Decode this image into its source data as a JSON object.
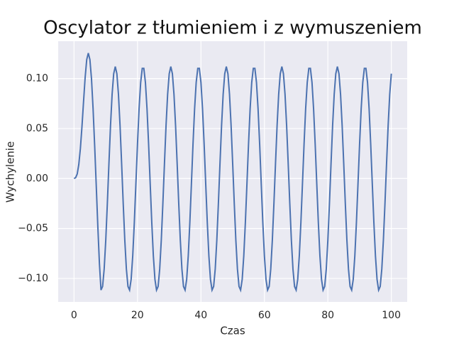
{
  "chart_data": {
    "type": "line",
    "title": "Oscylator z tłumieniem i z wymuszeniem",
    "xlabel": "Czas",
    "ylabel": "Wychylenie",
    "xlim": [
      -5,
      105
    ],
    "ylim": [
      -0.1235,
      0.1374
    ],
    "xticks": [
      0,
      20,
      40,
      60,
      80,
      100
    ],
    "yticks": [
      {
        "value": -0.1,
        "label": "−0.10"
      },
      {
        "value": -0.05,
        "label": "−0.05"
      },
      {
        "value": 0,
        "label": "0.00"
      },
      {
        "value": 0.05,
        "label": "0.05"
      },
      {
        "value": 0.1,
        "label": "0.10"
      }
    ],
    "grid": true,
    "x": [
      0,
      0.5,
      1,
      1.5,
      2,
      2.5,
      3,
      3.5,
      4,
      4.5,
      5,
      5.5,
      6,
      6.5,
      7,
      7.5,
      8,
      8.5,
      9,
      9.5,
      10,
      10.5,
      11,
      11.5,
      12,
      12.5,
      13,
      13.5,
      14,
      14.5,
      15,
      15.5,
      16,
      16.5,
      17,
      17.5,
      18,
      18.5,
      19,
      19.5,
      20,
      20.5,
      21,
      21.5,
      22,
      22.5,
      23,
      23.5,
      24,
      24.5,
      25,
      25.5,
      26,
      26.5,
      27,
      27.5,
      28,
      28.5,
      29,
      29.5,
      30,
      30.5,
      31,
      31.5,
      32,
      32.5,
      33,
      33.5,
      34,
      34.5,
      35,
      35.5,
      36,
      36.5,
      37,
      37.5,
      38,
      38.5,
      39,
      39.5,
      40,
      40.5,
      41,
      41.5,
      42,
      42.5,
      43,
      43.5,
      44,
      44.5,
      45,
      45.5,
      46,
      46.5,
      47,
      47.5,
      48,
      48.5,
      49,
      49.5,
      50,
      50.5,
      51,
      51.5,
      52,
      52.5,
      53,
      53.5,
      54,
      54.5,
      55,
      55.5,
      56,
      56.5,
      57,
      57.5,
      58,
      58.5,
      59,
      59.5,
      60,
      60.5,
      61,
      61.5,
      62,
      62.5,
      63,
      63.5,
      64,
      64.5,
      65,
      65.5,
      66,
      66.5,
      67,
      67.5,
      68,
      68.5,
      69,
      69.5,
      70,
      70.5,
      71,
      71.5,
      72,
      72.5,
      73,
      73.5,
      74,
      74.5,
      75,
      75.5,
      76,
      76.5,
      77,
      77.5,
      78,
      78.5,
      79,
      79.5,
      80,
      80.5,
      81,
      81.5,
      82,
      82.5,
      83,
      83.5,
      84,
      84.5,
      85,
      85.5,
      86,
      86.5,
      87,
      87.5,
      88,
      88.5,
      89,
      89.5,
      90,
      90.5,
      91,
      91.5,
      92,
      92.5,
      93,
      93.5,
      94,
      94.5,
      95,
      95.5,
      96,
      96.5,
      97,
      97.5,
      98,
      98.5,
      99,
      99.5,
      100
    ],
    "series": [
      {
        "color": "#4c72b0",
        "values": [
          0,
          0.0008,
          0.0045,
          0.014,
          0.03,
          0.052,
          0.077,
          0.101,
          0.119,
          0.1255,
          0.119,
          0.1,
          0.07,
          0.033,
          -0.007,
          -0.048,
          -0.085,
          -0.1116,
          -0.108,
          -0.0906,
          -0.0618,
          -0.0249,
          0.015,
          0.0531,
          0.0843,
          0.1049,
          0.112,
          0.1049,
          0.0843,
          0.0531,
          0.015,
          -0.0249,
          -0.0618,
          -0.0906,
          -0.108,
          -0.1116,
          -0.1009,
          -0.0774,
          -0.044,
          -0.005,
          0.0346,
          0.0698,
          0.0961,
          0.1102,
          0.1102,
          0.0961,
          0.0698,
          0.0346,
          -0.005,
          -0.044,
          -0.0774,
          -0.1009,
          -0.1116,
          -0.108,
          -0.0906,
          -0.0618,
          -0.0249,
          0.015,
          0.0531,
          0.0843,
          0.1049,
          0.112,
          0.1049,
          0.0843,
          0.0531,
          0.015,
          -0.0249,
          -0.0618,
          -0.0906,
          -0.108,
          -0.1116,
          -0.1009,
          -0.0774,
          -0.044,
          -0.005,
          0.0346,
          0.0698,
          0.0961,
          0.1102,
          0.1102,
          0.0961,
          0.0698,
          0.0346,
          -0.005,
          -0.044,
          -0.0774,
          -0.1009,
          -0.1116,
          -0.108,
          -0.0906,
          -0.0618,
          -0.0249,
          0.015,
          0.0531,
          0.0843,
          0.1049,
          0.112,
          0.1049,
          0.0843,
          0.0531,
          0.015,
          -0.0249,
          -0.0618,
          -0.0906,
          -0.108,
          -0.1116,
          -0.1009,
          -0.0774,
          -0.044,
          -0.005,
          0.0346,
          0.0698,
          0.0961,
          0.1102,
          0.1102,
          0.0961,
          0.0698,
          0.0346,
          -0.005,
          -0.044,
          -0.0774,
          -0.1009,
          -0.1116,
          -0.108,
          -0.0906,
          -0.0618,
          -0.0249,
          0.015,
          0.0531,
          0.0843,
          0.1049,
          0.112,
          0.1049,
          0.0843,
          0.0531,
          0.015,
          -0.0249,
          -0.0618,
          -0.0906,
          -0.108,
          -0.1116,
          -0.1009,
          -0.0774,
          -0.044,
          -0.005,
          0.0346,
          0.0698,
          0.0961,
          0.1102,
          0.1102,
          0.0961,
          0.0698,
          0.0346,
          -0.005,
          -0.044,
          -0.0774,
          -0.1009,
          -0.1116,
          -0.108,
          -0.0906,
          -0.0618,
          -0.0249,
          0.015,
          0.0531,
          0.0843,
          0.1049,
          0.112,
          0.1049,
          0.0843,
          0.0531,
          0.015,
          -0.0249,
          -0.0618,
          -0.0906,
          -0.108,
          -0.1116,
          -0.1009,
          -0.0774,
          -0.044,
          -0.005,
          0.0346,
          0.0698,
          0.0961,
          0.1102,
          0.1102,
          0.0961,
          0.0698,
          0.0346,
          -0.005,
          -0.044,
          -0.0774,
          -0.1009,
          -0.1116,
          -0.108,
          -0.0906,
          -0.0618,
          -0.0249,
          0.015,
          0.0531,
          0.0843,
          0.1049
        ]
      }
    ]
  }
}
